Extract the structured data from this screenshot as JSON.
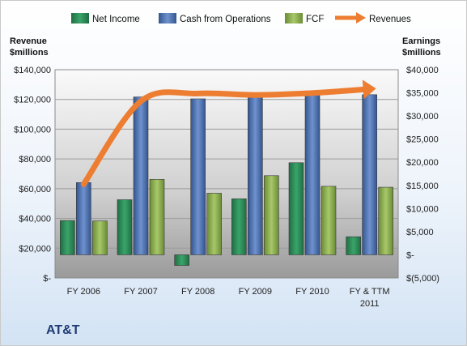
{
  "company": "AT&T",
  "chart_data": {
    "type": "bar",
    "categories": [
      [
        "FY 2006"
      ],
      [
        "FY 2007"
      ],
      [
        "FY 2008"
      ],
      [
        "FY 2009"
      ],
      [
        "FY 2010"
      ],
      [
        "FY & TTM",
        "2011"
      ]
    ],
    "left_axis": {
      "title": [
        "Revenue",
        "$millions"
      ],
      "range": [
        0,
        140000
      ],
      "ticks": [
        "$-",
        "$20,000",
        "$40,000",
        "$60,000",
        "$80,000",
        "$100,000",
        "$120,000",
        "$140,000"
      ]
    },
    "right_axis": {
      "title": [
        "Earnings",
        "$millions"
      ],
      "range": [
        -5000,
        40000
      ],
      "ticks": [
        "$(5,000)",
        "$-",
        "$5,000",
        "$10,000",
        "$15,000",
        "$20,000",
        "$25,000",
        "$30,000",
        "$35,000",
        "$40,000"
      ]
    },
    "series": [
      {
        "name": "Net Income",
        "type": "bar",
        "axis": "right",
        "color": "#2e8b57",
        "values": [
          7400,
          11900,
          -2300,
          12100,
          19900,
          3900
        ]
      },
      {
        "name": "Cash from Operations",
        "type": "bar",
        "axis": "right",
        "color": "#4f74b8",
        "values": [
          15600,
          34100,
          33700,
          34500,
          34900,
          34600
        ]
      },
      {
        "name": "FCF",
        "type": "bar",
        "axis": "right",
        "color": "#8db24e",
        "values": [
          7300,
          16300,
          13300,
          17100,
          14800,
          14600
        ]
      },
      {
        "name": "Revenues",
        "type": "line",
        "axis": "left",
        "color": "#ed7d31",
        "values": [
          63000,
          118800,
          124000,
          123000,
          124300,
          127000
        ]
      }
    ],
    "grid": true,
    "legend": "top"
  }
}
